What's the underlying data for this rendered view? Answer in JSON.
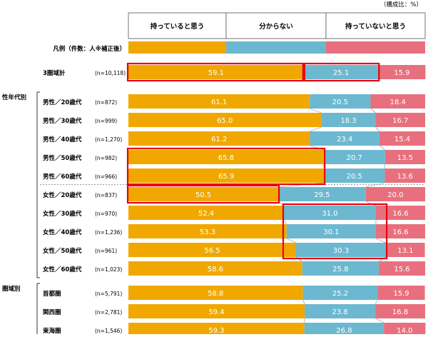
{
  "chart_data": {
    "type": "bar",
    "stacked": "100%",
    "unit_note": "（構成比：%）",
    "legend_label": "凡例（件数：人※補正後）",
    "series": [
      {
        "name": "持っていると思う",
        "color": "#f0a800"
      },
      {
        "name": "分からない",
        "color": "#6cb8d0"
      },
      {
        "name": "持っていないと思う",
        "color": "#e8707e"
      }
    ],
    "groups": [
      {
        "label": ""
      },
      {
        "label": "性年代別"
      },
      {
        "label": "圏域別"
      }
    ],
    "rows": [
      {
        "group": 0,
        "label": "3圏域計",
        "n": "(n=10,118)",
        "values": [
          59.1,
          25.1,
          15.9
        ],
        "labels": [
          "59.1",
          "25.1",
          "15.9"
        ]
      },
      {
        "group": 1,
        "label": "男性／20歳代",
        "n": "(n=872)",
        "values": [
          61.1,
          20.5,
          18.4
        ],
        "labels": [
          "61.1",
          "20.5",
          "18.4"
        ]
      },
      {
        "group": 1,
        "label": "男性／30歳代",
        "n": "(n=999)",
        "values": [
          65.0,
          18.3,
          16.7
        ],
        "labels": [
          "65.0",
          "18.3",
          "16.7"
        ]
      },
      {
        "group": 1,
        "label": "男性／40歳代",
        "n": "(n=1,270)",
        "values": [
          61.2,
          23.4,
          15.4
        ],
        "labels": [
          "61.2",
          "23.4",
          "15.4"
        ]
      },
      {
        "group": 1,
        "label": "男性／50歳代",
        "n": "(n=982)",
        "values": [
          65.8,
          20.7,
          13.5
        ],
        "labels": [
          "65.8",
          "20.7",
          "13.5"
        ]
      },
      {
        "group": 1,
        "label": "男性／60歳代",
        "n": "(n=966)",
        "values": [
          65.9,
          20.5,
          13.6
        ],
        "labels": [
          "65.9",
          "20.5",
          "13.6"
        ]
      },
      {
        "group": 1,
        "label": "女性／20歳代",
        "n": "(n=837)",
        "values": [
          50.5,
          29.5,
          20.0
        ],
        "labels": [
          "50.5",
          "29.5",
          "20.0"
        ]
      },
      {
        "group": 1,
        "label": "女性／30歳代",
        "n": "(n=970)",
        "values": [
          52.4,
          31.0,
          16.6
        ],
        "labels": [
          "52.4",
          "31.0",
          "16.6"
        ]
      },
      {
        "group": 1,
        "label": "女性／40歳代",
        "n": "(n=1,236)",
        "values": [
          53.3,
          30.1,
          16.6
        ],
        "labels": [
          "53.3",
          "30.1",
          "16.6"
        ]
      },
      {
        "group": 1,
        "label": "女性／50歳代",
        "n": "(n=961)",
        "values": [
          56.5,
          30.3,
          13.1
        ],
        "labels": [
          "56.5",
          "30.3",
          "13.1"
        ]
      },
      {
        "group": 1,
        "label": "女性／60歳代",
        "n": "(n=1,023)",
        "values": [
          58.6,
          25.8,
          15.6
        ],
        "labels": [
          "58.6",
          "25.8",
          "15.6"
        ]
      },
      {
        "group": 2,
        "label": "首都圏",
        "n": "(n=5,791)",
        "values": [
          58.8,
          25.2,
          15.9
        ],
        "labels": [
          "58.8",
          "25.2",
          "15.9"
        ]
      },
      {
        "group": 2,
        "label": "関西圏",
        "n": "(n=2,781)",
        "values": [
          59.4,
          23.8,
          16.8
        ],
        "labels": [
          "59.4",
          "23.8",
          "16.8"
        ]
      },
      {
        "group": 2,
        "label": "東海圏",
        "n": "(n=1,546)",
        "values": [
          59.3,
          26.8,
          14.0
        ],
        "labels": [
          "59.3",
          "26.8",
          "14.0"
        ]
      }
    ],
    "highlights": [
      {
        "rows": [
          0,
          0
        ],
        "segments": [
          0
        ]
      },
      {
        "rows": [
          0,
          0
        ],
        "segments": [
          1
        ]
      },
      {
        "rows": [
          4,
          5
        ],
        "segments": [
          0
        ]
      },
      {
        "rows": [
          6,
          6
        ],
        "segments": [
          0
        ]
      },
      {
        "rows": [
          7,
          9
        ],
        "segments": [
          1
        ]
      }
    ],
    "highlight_color": "#e8000e"
  }
}
